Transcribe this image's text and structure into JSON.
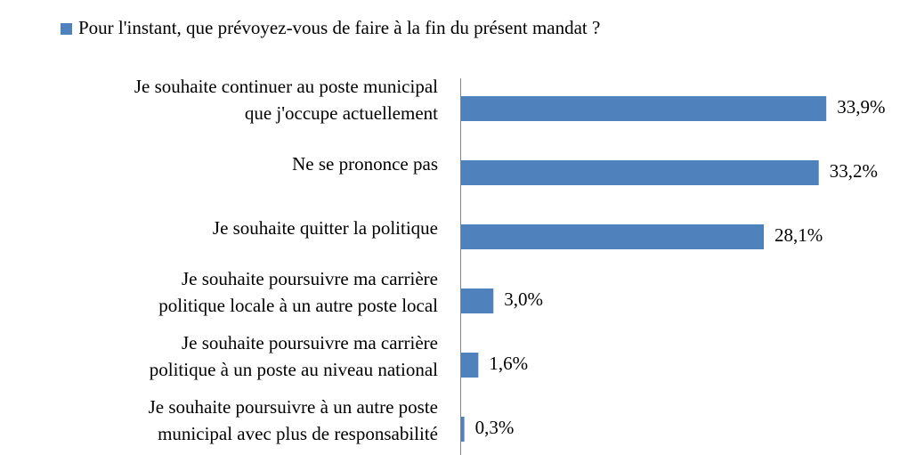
{
  "chart_data": {
    "type": "bar",
    "orientation": "horizontal",
    "categories": [
      [
        "Je souhaite continuer au poste municipal",
        "que j'occupe actuellement"
      ],
      [
        "Ne se prononce pas"
      ],
      [
        "Je souhaite quitter la politique"
      ],
      [
        "Je souhaite poursuivre ma carrière",
        "politique locale à un autre poste local"
      ],
      [
        "Je souhaite poursuivre ma carrière",
        "politique à un poste au niveau national"
      ],
      [
        "Je souhaite poursuivre à un autre poste",
        "municipal avec plus de responsabilité"
      ]
    ],
    "series": [
      {
        "name": "Pour l'instant, que prévoyez-vous de faire à la fin du présent mandat ?",
        "color": "#4f81bd",
        "values": [
          33.9,
          33.2,
          28.1,
          3.0,
          1.6,
          0.3
        ],
        "value_labels": [
          "33,9%",
          "33,2%",
          "28,1%",
          "3,0%",
          "1,6%",
          "0,3%"
        ]
      }
    ],
    "xlim": [
      0,
      40
    ],
    "legend": "top"
  }
}
